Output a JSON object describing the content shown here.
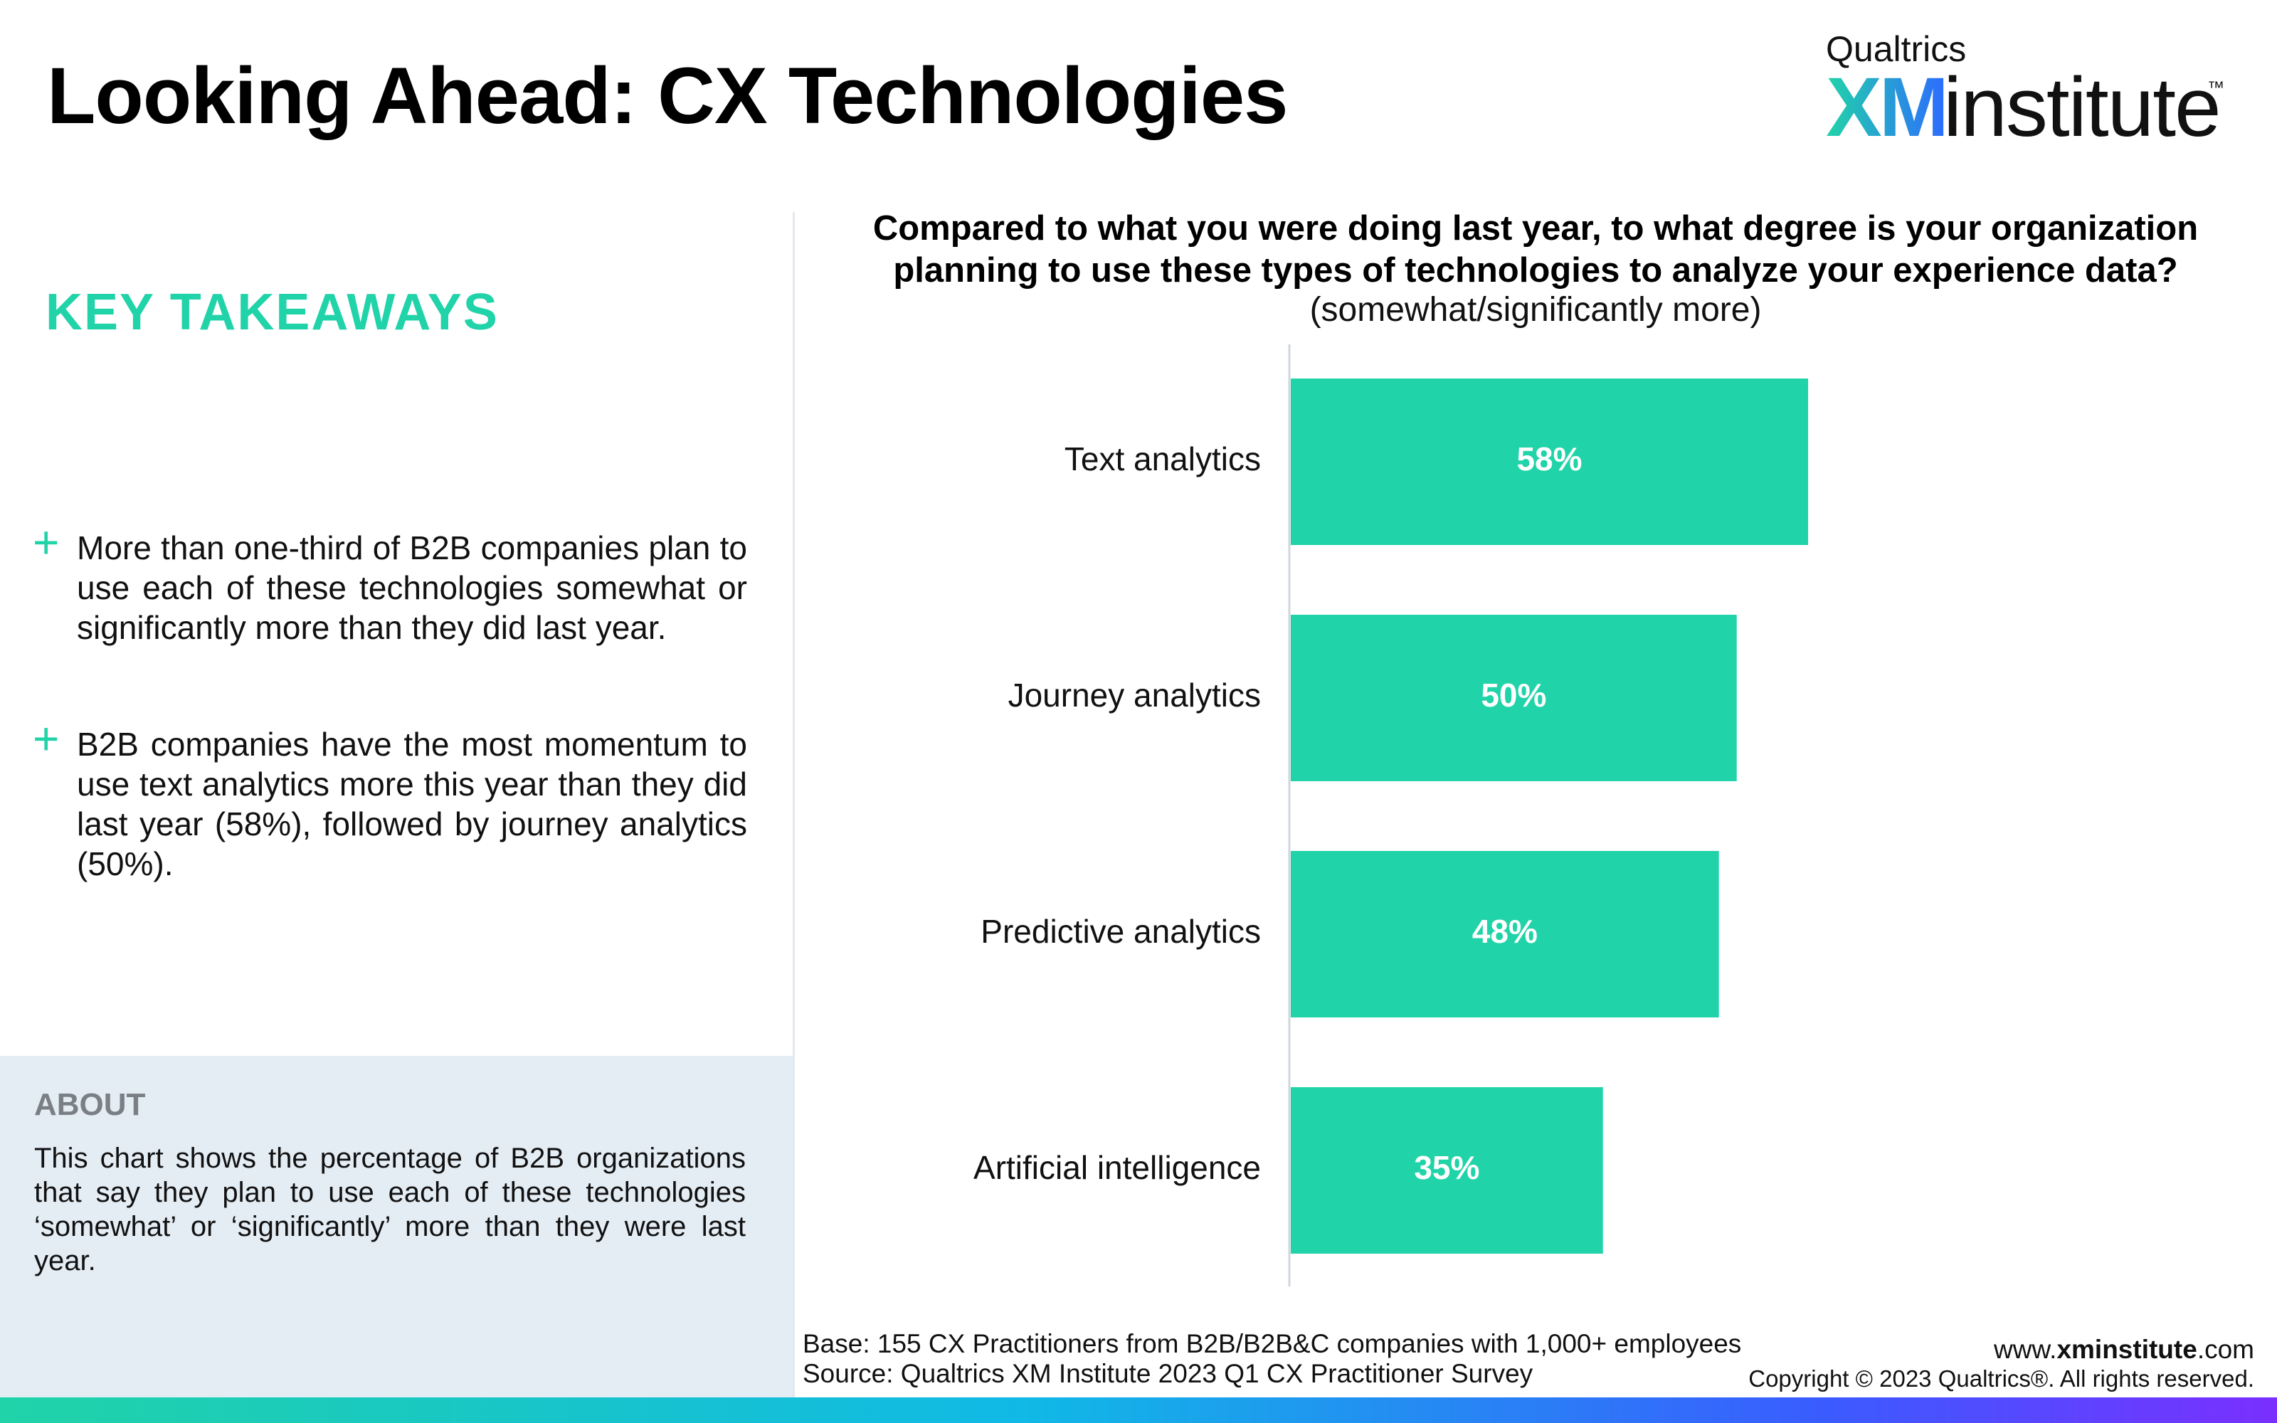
{
  "header": {
    "title": "Looking Ahead: CX Technologies",
    "logo": {
      "brand": "Qualtrics",
      "mark": "XM",
      "word": "institute",
      "tm": "™"
    }
  },
  "takeaways": {
    "heading": "KEY TAKEAWAYS",
    "bullets": [
      "More than one-third of B2B companies plan to use each of these technologies somewhat or significantly more than they did last year.",
      "B2B companies have the most momentum to use text analytics more this year than they did last year (58%), followed by journey analytics (50%)."
    ],
    "bullet_icon": "plus-icon"
  },
  "about": {
    "heading": "ABOUT",
    "text": "This chart shows the percentage of B2B organizations that say they plan to use each of these technologies ‘somewhat’ or ‘significantly’ more than they were last year."
  },
  "chart_data": {
    "type": "bar",
    "orientation": "horizontal",
    "title": "Compared to what you were doing last year, to what degree is your organization planning to use these types of technologies to analyze your experience data?",
    "subtitle": "(somewhat/significantly more)",
    "categories": [
      "Text analytics",
      "Journey analytics",
      "Predictive analytics",
      "Artificial intelligence"
    ],
    "values": [
      58,
      50,
      48,
      35
    ],
    "value_labels": [
      "58%",
      "50%",
      "48%",
      "35%"
    ],
    "xlim": [
      0,
      100
    ],
    "bar_color": "#21d3a8",
    "grid": false,
    "legend": "none"
  },
  "footer": {
    "base": "Base: 155 CX Practitioners from B2B/B2B&C companies with 1,000+ employees",
    "source": "Source: Qualtrics XM Institute 2023 Q1 CX Practitioner Survey",
    "url_prefix": "www.",
    "url_bold": "xminstitute",
    "url_suffix": ".com",
    "copyright": "Copyright © 2023 Qualtrics®. All rights reserved."
  },
  "colors": {
    "accent": "#21d3a8",
    "about_bg": "#e4ecf4",
    "about_heading": "#7a7f86"
  }
}
